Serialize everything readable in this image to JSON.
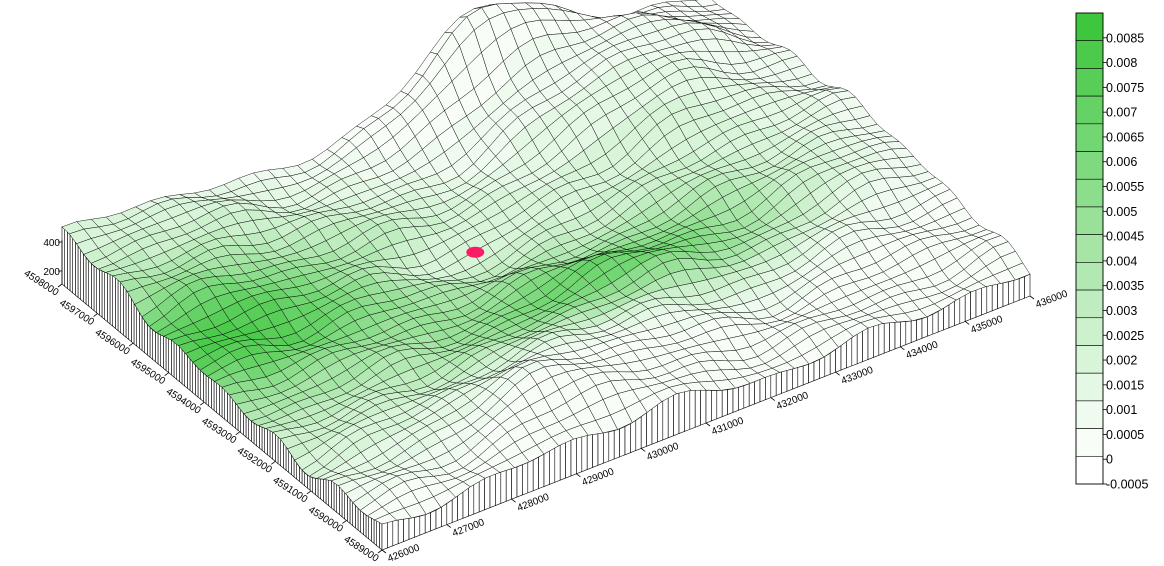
{
  "chart_data": {
    "type": "surface",
    "title": "",
    "x_axis": {
      "ticks": [
        "426000",
        "427000",
        "428000",
        "429000",
        "430000",
        "431000",
        "432000",
        "433000",
        "434000",
        "435000",
        "436000"
      ],
      "range": [
        426000,
        436000
      ]
    },
    "y_axis": {
      "ticks": [
        "4589000",
        "4590000",
        "4591000",
        "4592000",
        "4593000",
        "4594000",
        "4595000",
        "4596000",
        "4597000",
        "4598000"
      ],
      "range": [
        4589000,
        4598000
      ]
    },
    "z_axis": {
      "ticks": [
        "200",
        "400"
      ]
    },
    "legend": {
      "position": "right",
      "labels": [
        "0.0085",
        "0.008",
        "0.0075",
        "0.007",
        "0.0065",
        "0.006",
        "0.0055",
        "0.005",
        "0.0045",
        "0.004",
        "0.0035",
        "0.003",
        "0.0025",
        "0.002",
        "0.0015",
        "0.001",
        "0.0005",
        "0",
        "-0.0005"
      ],
      "colors": [
        "#3ec63e",
        "#4bca4b",
        "#58ce58",
        "#65d265",
        "#72d672",
        "#7fda7f",
        "#8cdd8c",
        "#99e199",
        "#a6e5a6",
        "#b2e9b2",
        "#bfedbf",
        "#ccf1cc",
        "#d9f5d9",
        "#e5f8e5",
        "#f0fbf0",
        "#f8fdf8",
        "#ffffff"
      ]
    },
    "source_marker_color": "#ff1a66",
    "mesh_color": "#000000",
    "grid_resolution": 44
  }
}
